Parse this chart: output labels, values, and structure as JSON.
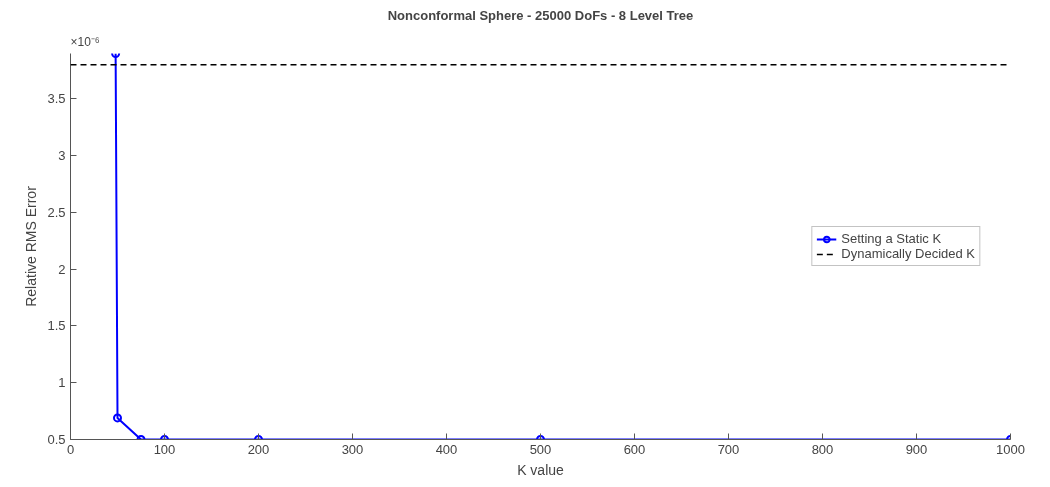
{
  "chart_data": {
    "type": "line",
    "title": "Nonconformal Sphere - 25000 DoFs - 8 Level Tree",
    "xlabel": "K value",
    "ylabel": "Relative RMS Error",
    "annotations": [
      "×10⁻⁶"
    ],
    "x": [
      48,
      50,
      75,
      100,
      200,
      500,
      1000
    ],
    "series": [
      {
        "name": "Setting a Static K",
        "color": "#0000ff",
        "values": [
          3.9,
          0.69,
          0.5,
          0.5,
          0.5,
          0.5,
          0.5
        ]
      }
    ],
    "ref_lines": [
      {
        "axis": "y",
        "value": 3.8,
        "label": "Dynamically Decided K",
        "color": "#000000",
        "line_style": "dashed"
      }
    ],
    "xlim": [
      0,
      1000
    ],
    "ylim": [
      0.5,
      3.9
    ],
    "xticks": [
      0,
      100,
      200,
      300,
      400,
      500,
      600,
      700,
      800,
      900,
      1000
    ],
    "yticks": [
      0.5,
      1,
      1.5,
      2,
      2.5,
      3,
      3.5
    ],
    "marker": "circle",
    "line_style": "solid",
    "grid": false,
    "legend": "right"
  }
}
